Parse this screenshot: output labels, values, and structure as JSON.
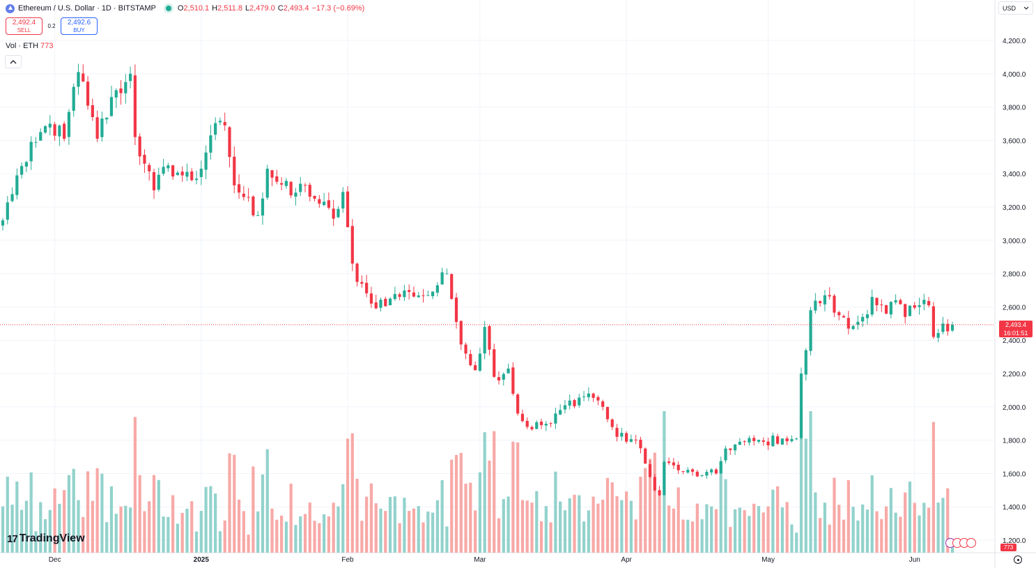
{
  "header": {
    "symbol_title": "Ethereum / U.S. Dollar · 1D · BITSTAMP",
    "ohlc": {
      "o_label": "O",
      "o": "2,510.1",
      "h_label": "H",
      "h": "2,511.8",
      "l_label": "L",
      "l": "2,479.0",
      "c_label": "C",
      "c": "2,493.4",
      "change": "−17.3 (−0.69%)"
    }
  },
  "trade": {
    "sell_price": "2,492.4",
    "sell_label": "SELL",
    "spread": "0.2",
    "buy_price": "2,492.6",
    "buy_label": "BUY"
  },
  "volume_legend": {
    "label": "Vol · ETH",
    "value": "773"
  },
  "currency": "USD",
  "last_price": {
    "value": "2,493.4",
    "countdown": "16:01:51"
  },
  "last_volume": "773",
  "branding": "TradingView",
  "colors": {
    "up": "#22ab94",
    "down": "#f23645",
    "up_volume": "#92d2cc",
    "down_volume": "#f7a9a7",
    "grid": "#f0f3fa"
  },
  "icons": {
    "symbol": "ethereum-icon",
    "collapse": "chevron-up-icon",
    "settings": "gear-icon",
    "currency": "chevron-down-icon"
  },
  "chart_data": {
    "type": "candlestick",
    "title": "Ethereum / U.S. Dollar · 1D · BITSTAMP",
    "y_axis": {
      "min": 1150,
      "max": 4330,
      "ticks": [
        "4,200.0",
        "4,000.0",
        "3,800.0",
        "3,600.0",
        "3,400.0",
        "3,200.0",
        "3,000.0",
        "2,800.0",
        "2,600.0",
        "2,400.0",
        "2,200.0",
        "2,000.0",
        "1,800.0",
        "1,600.0",
        "1,400.0",
        "1,200.0"
      ],
      "tick_values": [
        4200,
        4000,
        3800,
        3600,
        3400,
        3200,
        3000,
        2800,
        2600,
        2400,
        2200,
        2000,
        1800,
        1600,
        1400,
        1200
      ]
    },
    "x_axis": {
      "labels": [
        "Dec",
        "2025",
        "Feb",
        "Mar",
        "Apr",
        "May",
        "Jun"
      ],
      "label_dates": [
        "2024-12-01",
        "2025-01-01",
        "2025-02-01",
        "2025-03-01",
        "2025-04-01",
        "2025-05-01",
        "2025-06-01"
      ]
    },
    "start_date": "2024-11-20",
    "end_date": "2025-06-09",
    "grid": true,
    "last_close": 2493.4,
    "anchors": [
      [
        "2024-11-20",
        3120
      ],
      [
        "2024-11-23",
        3390
      ],
      [
        "2024-11-25",
        3470
      ],
      [
        "2024-11-27",
        3590
      ],
      [
        "2024-11-30",
        3700
      ],
      [
        "2024-12-03",
        3610
      ],
      [
        "2024-12-06",
        4010
      ],
      [
        "2024-12-09",
        3740
      ],
      [
        "2024-12-10",
        3610
      ],
      [
        "2024-12-13",
        3860
      ],
      [
        "2024-12-16",
        3950
      ],
      [
        "2024-12-17",
        4000
      ],
      [
        "2024-12-18",
        3620
      ],
      [
        "2024-12-20",
        3460
      ],
      [
        "2024-12-22",
        3300
      ],
      [
        "2024-12-25",
        3450
      ],
      [
        "2024-12-28",
        3390
      ],
      [
        "2024-12-31",
        3370
      ],
      [
        "2025-01-03",
        3630
      ],
      [
        "2025-01-06",
        3690
      ],
      [
        "2025-01-08",
        3330
      ],
      [
        "2025-01-10",
        3260
      ],
      [
        "2025-01-13",
        3150
      ],
      [
        "2025-01-15",
        3430
      ],
      [
        "2025-01-20",
        3270
      ],
      [
        "2025-01-23",
        3330
      ],
      [
        "2025-01-26",
        3220
      ],
      [
        "2025-01-29",
        3130
      ],
      [
        "2025-01-31",
        3290
      ],
      [
        "2025-02-02",
        2860
      ],
      [
        "2025-02-03",
        2750
      ],
      [
        "2025-02-06",
        2620
      ],
      [
        "2025-02-10",
        2650
      ],
      [
        "2025-02-14",
        2690
      ],
      [
        "2025-02-18",
        2670
      ],
      [
        "2025-02-20",
        2730
      ],
      [
        "2025-02-22",
        2800
      ],
      [
        "2025-02-24",
        2510
      ],
      [
        "2025-02-26",
        2320
      ],
      [
        "2025-02-28",
        2220
      ],
      [
        "2025-03-02",
        2480
      ],
      [
        "2025-03-04",
        2180
      ],
      [
        "2025-03-07",
        2230
      ],
      [
        "2025-03-09",
        1960
      ],
      [
        "2025-03-11",
        1880
      ],
      [
        "2025-03-16",
        1900
      ],
      [
        "2025-03-19",
        2010
      ],
      [
        "2025-03-24",
        2080
      ],
      [
        "2025-03-27",
        2000
      ],
      [
        "2025-03-30",
        1820
      ],
      [
        "2025-04-03",
        1800
      ],
      [
        "2025-04-06",
        1580
      ],
      [
        "2025-04-08",
        1470
      ],
      [
        "2025-04-09",
        1670
      ],
      [
        "2025-04-13",
        1610
      ],
      [
        "2025-04-17",
        1590
      ],
      [
        "2025-04-20",
        1600
      ],
      [
        "2025-04-22",
        1750
      ],
      [
        "2025-04-26",
        1790
      ],
      [
        "2025-04-30",
        1790
      ],
      [
        "2025-05-04",
        1810
      ],
      [
        "2025-05-07",
        1810
      ],
      [
        "2025-05-08",
        2200
      ],
      [
        "2025-05-09",
        2340
      ],
      [
        "2025-05-10",
        2580
      ],
      [
        "2025-05-13",
        2670
      ],
      [
        "2025-05-16",
        2550
      ],
      [
        "2025-05-18",
        2470
      ],
      [
        "2025-05-21",
        2540
      ],
      [
        "2025-05-23",
        2660
      ],
      [
        "2025-05-26",
        2560
      ],
      [
        "2025-05-28",
        2640
      ],
      [
        "2025-05-30",
        2540
      ],
      [
        "2025-06-02",
        2610
      ],
      [
        "2025-06-04",
        2610
      ],
      [
        "2025-06-05",
        2420
      ],
      [
        "2025-06-07",
        2500
      ],
      [
        "2025-06-09",
        2493.4
      ]
    ],
    "volume_scale_max": 1000
  }
}
